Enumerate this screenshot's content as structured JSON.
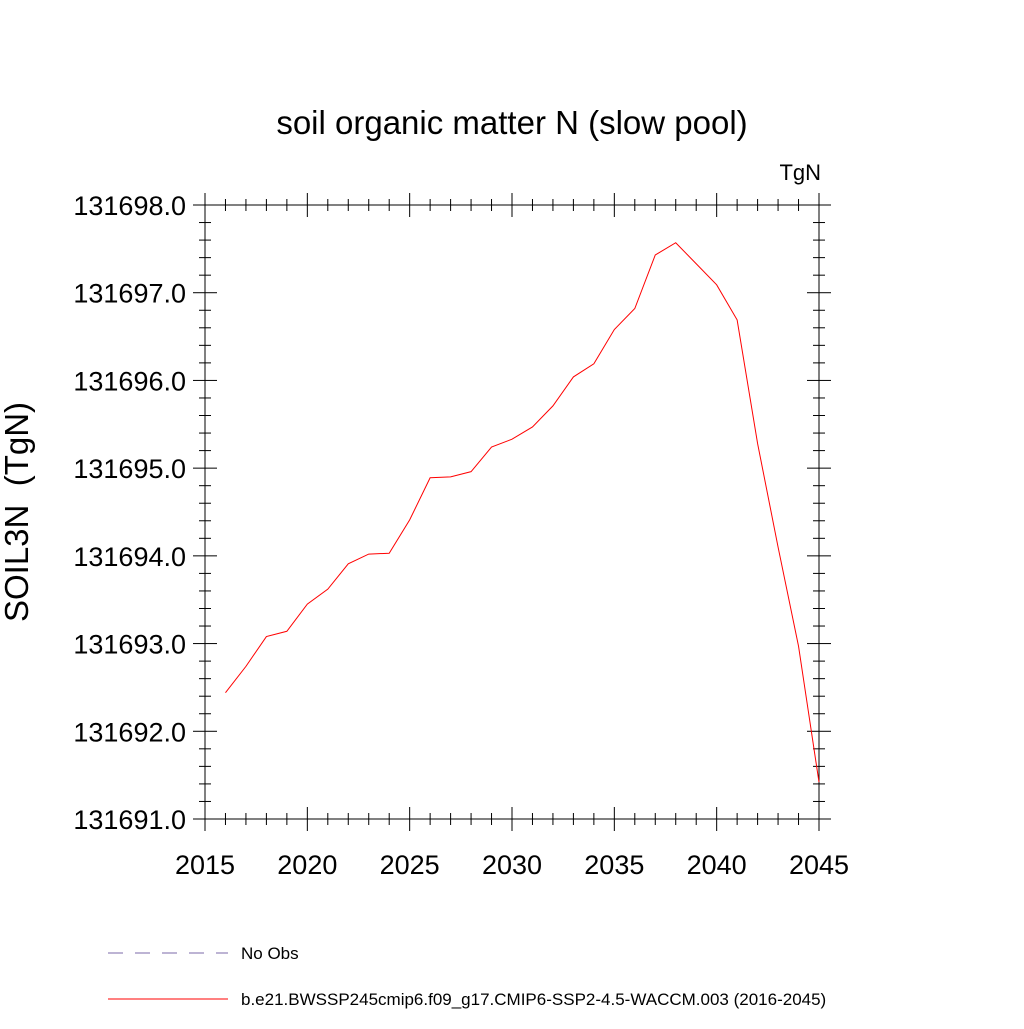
{
  "chart_data": {
    "type": "line",
    "title": "soil organic matter N (slow pool)",
    "units_label": "TgN",
    "ylabel": "SOIL3N  (TgN)",
    "xlabel": "",
    "xlim": [
      2015,
      2045
    ],
    "ylim": [
      131691.0,
      131698.0
    ],
    "x_ticks": [
      2015,
      2020,
      2025,
      2030,
      2035,
      2040,
      2045
    ],
    "x_tick_labels": [
      "2015",
      "2020",
      "2025",
      "2030",
      "2035",
      "2040",
      "2045"
    ],
    "y_ticks": [
      131691.0,
      131692.0,
      131693.0,
      131694.0,
      131695.0,
      131696.0,
      131697.0,
      131698.0
    ],
    "y_tick_labels": [
      "131691.0",
      "131692.0",
      "131693.0",
      "131694.0",
      "131695.0",
      "131696.0",
      "131697.0",
      "131698.0"
    ],
    "grid": false,
    "legend_position": "bottom",
    "series": [
      {
        "name": "b.e21.BWSSP245cmip6.f09_g17.CMIP6-SSP2-4.5-WACCM.003 (2016-2045)",
        "color": "#ff0000",
        "style": "solid",
        "x": [
          2016,
          2017,
          2018,
          2019,
          2020,
          2021,
          2022,
          2023,
          2024,
          2025,
          2026,
          2027,
          2028,
          2029,
          2030,
          2031,
          2032,
          2033,
          2034,
          2035,
          2036,
          2037,
          2038,
          2039,
          2040,
          2041,
          2042,
          2043,
          2044,
          2045
        ],
        "values": [
          131692.44,
          131692.74,
          131693.08,
          131693.14,
          131693.45,
          131693.62,
          131693.91,
          131694.02,
          131694.03,
          131694.41,
          131694.89,
          131694.9,
          131694.96,
          131695.24,
          131695.33,
          131695.47,
          131695.71,
          131696.04,
          131696.19,
          131696.58,
          131696.82,
          131697.43,
          131697.57,
          131697.33,
          131697.09,
          131696.69,
          131695.28,
          131694.1,
          131692.97,
          131691.42
        ]
      }
    ],
    "legend": [
      {
        "label": "No Obs",
        "color": "#7b68a8",
        "style": "dashed"
      },
      {
        "label": "b.e21.BWSSP245cmip6.f09_g17.CMIP6-SSP2-4.5-WACCM.003 (2016-2045)",
        "color": "#ff0000",
        "style": "solid"
      }
    ]
  }
}
